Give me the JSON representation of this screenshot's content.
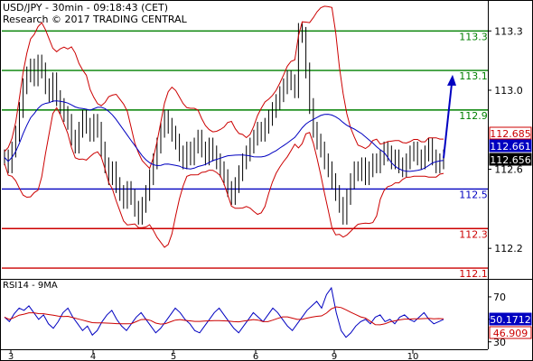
{
  "header": {
    "line1": "USD/JPY - 30min - 09:18:43 (CET)",
    "line2": "Research © 2017 TRADING CENTRAL"
  },
  "chart_data": [
    {
      "type": "line",
      "title": "USD/JPY - 30min",
      "ylim": [
        112.05,
        113.42
      ],
      "y_ticks": [
        "113.3",
        "113.0",
        "112.6",
        "112.2"
      ],
      "x_tick_labels": [
        "3",
        "4",
        "5",
        "6",
        "9",
        "10"
      ],
      "levels": [
        {
          "label": "113.3",
          "value": 113.3,
          "color": "#008000"
        },
        {
          "label": "113.1",
          "value": 113.1,
          "color": "#008000"
        },
        {
          "label": "112.9",
          "value": 112.9,
          "color": "#008000"
        },
        {
          "label": "112.5",
          "value": 112.5,
          "color": "#0000c0"
        },
        {
          "label": "112.3",
          "value": 112.3,
          "color": "#cc0000"
        },
        {
          "label": "112.1",
          "value": 112.1,
          "color": "#cc0000"
        }
      ],
      "price_tags": [
        {
          "label": "112.685",
          "value": 112.685,
          "bg": "#ffffff",
          "fg": "#cc0000"
        },
        {
          "label": "112.661",
          "value": 112.661,
          "bg": "#0000c0",
          "fg": "#ffffff"
        },
        {
          "label": "112.656",
          "value": 112.656,
          "bg": "#000000",
          "fg": "#ffffff"
        }
      ],
      "close_series": [
        112.66,
        112.62,
        112.7,
        112.78,
        112.9,
        113.02,
        113.08,
        113.12,
        113.06,
        113.14,
        113.1,
        113.02,
        112.98,
        113.05,
        112.96,
        112.92,
        112.88,
        112.84,
        112.76,
        112.72,
        112.8,
        112.86,
        112.82,
        112.78,
        112.84,
        112.8,
        112.7,
        112.62,
        112.56,
        112.6,
        112.52,
        112.48,
        112.44,
        112.5,
        112.46,
        112.4,
        112.36,
        112.42,
        112.48,
        112.56,
        112.64,
        112.72,
        112.8,
        112.86,
        112.82,
        112.78,
        112.74,
        112.68,
        112.64,
        112.7,
        112.66,
        112.72,
        112.76,
        112.7,
        112.66,
        112.72,
        112.68,
        112.64,
        112.6,
        112.56,
        112.5,
        112.46,
        112.52,
        112.58,
        112.64,
        112.68,
        112.72,
        112.76,
        112.8,
        112.78,
        112.82,
        112.86,
        112.9,
        112.94,
        112.98,
        113.02,
        113.06,
        113.04,
        113.0,
        113.3,
        113.28,
        113.1,
        112.92,
        112.8,
        112.74,
        112.7,
        112.64,
        112.6,
        112.54,
        112.48,
        112.42,
        112.36,
        112.46,
        112.54,
        112.6,
        112.58,
        112.62,
        112.56,
        112.6,
        112.64,
        112.62,
        112.66,
        112.7,
        112.68,
        112.64,
        112.66,
        112.62,
        112.6,
        112.64,
        112.68,
        112.7,
        112.66,
        112.64,
        112.68,
        112.72,
        112.66,
        112.62,
        112.64,
        112.66
      ],
      "forecast_arrow": {
        "from": 112.656,
        "to": 113.06
      }
    },
    {
      "type": "line",
      "title": "RSI14 - 9MA",
      "ylim": [
        25,
        82
      ],
      "y_ticks": [
        "70",
        "50",
        "30"
      ],
      "value_tags": [
        {
          "label": "50.1712",
          "value": 50.1712,
          "bg": "#0000c0",
          "fg": "#ffffff"
        },
        {
          "label": "46.909",
          "value": 46.909,
          "bg": "#ffffff",
          "fg": "#cc0000"
        }
      ],
      "rsi_series": [
        52,
        48,
        55,
        60,
        58,
        62,
        56,
        50,
        54,
        46,
        42,
        48,
        56,
        60,
        52,
        46,
        40,
        44,
        36,
        40,
        48,
        54,
        58,
        50,
        44,
        40,
        46,
        52,
        56,
        50,
        44,
        38,
        42,
        48,
        54,
        60,
        56,
        50,
        46,
        40,
        38,
        44,
        50,
        56,
        60,
        54,
        48,
        42,
        38,
        44,
        50,
        56,
        52,
        48,
        54,
        60,
        56,
        50,
        44,
        40,
        46,
        52,
        58,
        62,
        66,
        60,
        72,
        78,
        56,
        40,
        34,
        38,
        44,
        48,
        50,
        46,
        52,
        54,
        48,
        50,
        46,
        52,
        54,
        50,
        48,
        52,
        56,
        50,
        46,
        48,
        50
      ]
    }
  ]
}
